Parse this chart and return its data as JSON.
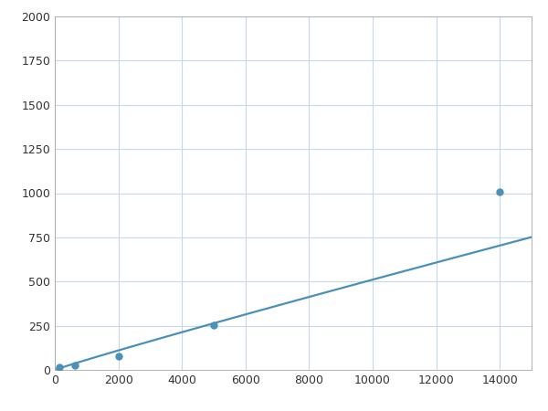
{
  "x_points": [
    156,
    625,
    2000,
    5000,
    14000
  ],
  "y_points": [
    15,
    25,
    75,
    255,
    1010
  ],
  "line_color": "#4a90b8",
  "marker_color": "#4a90b8",
  "marker_size": 5,
  "marker_style": "o",
  "line_width": 1.6,
  "xlim": [
    0,
    15000
  ],
  "ylim": [
    0,
    2000
  ],
  "xticks": [
    0,
    2000,
    4000,
    6000,
    8000,
    10000,
    12000,
    14000
  ],
  "yticks": [
    0,
    250,
    500,
    750,
    1000,
    1250,
    1500,
    1750,
    2000
  ],
  "grid_color": "#c8d8e8",
  "grid_linewidth": 0.8,
  "background_color": "#ffffff",
  "figure_background": "#ffffff",
  "spine_color": "#aaaaaa"
}
